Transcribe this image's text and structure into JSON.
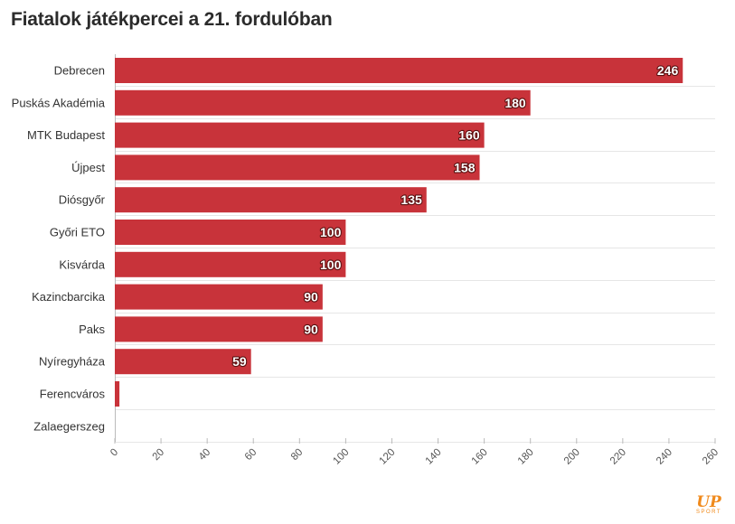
{
  "title": "Fiatalok játékpercei a 21. fordulóban",
  "logo": {
    "mark": "UP",
    "sub": "SPORT"
  },
  "colors": {
    "bar": "#c8333a",
    "grid": "#e6e6e6",
    "axis": "#bbbbbb",
    "logo": "#f08a1c"
  },
  "chart_data": {
    "type": "bar",
    "orientation": "horizontal",
    "title": "Fiatalok játékpercei a 21. fordulóban",
    "xlabel": "",
    "ylabel": "",
    "categories": [
      "Debrecen",
      "Puskás Akadémia",
      "MTK Budapest",
      "Újpest",
      "Diósgyőr",
      "Győri ETO",
      "Kisvárda",
      "Kazincbarcika",
      "Paks",
      "Nyíregyháza",
      "Ferencváros",
      "Zalaegerszeg"
    ],
    "values": [
      246,
      180,
      160,
      158,
      135,
      100,
      100,
      90,
      90,
      59,
      2,
      0
    ],
    "data_labels": [
      "246",
      "180",
      "160",
      "158",
      "135",
      "100",
      "100",
      "90",
      "90",
      "59",
      "",
      ""
    ],
    "xlim": [
      0,
      260
    ],
    "ticks": [
      0,
      20,
      40,
      60,
      80,
      100,
      120,
      140,
      160,
      180,
      200,
      220,
      240,
      260
    ],
    "grid": true,
    "legend": "none"
  }
}
